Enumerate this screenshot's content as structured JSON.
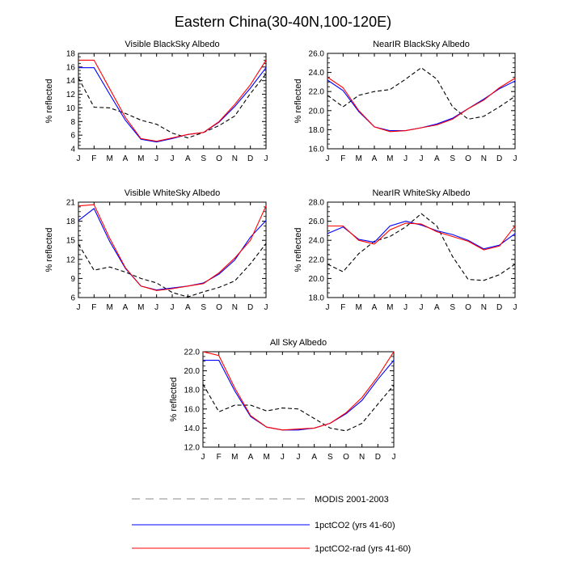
{
  "figure": {
    "title": "Eastern China(30-40N,100-120E)"
  },
  "months": [
    "J",
    "F",
    "M",
    "A",
    "M",
    "J",
    "J",
    "A",
    "S",
    "O",
    "N",
    "D",
    "J"
  ],
  "series_styles": [
    {
      "name": "MODIS 2001-2003",
      "color": "#000000",
      "dash": "dashed"
    },
    {
      "name": "1pctCO2 (yrs 41-60)",
      "color": "#0000ff",
      "dash": "solid"
    },
    {
      "name": "1pctCO2-rad (yrs 41-60)",
      "color": "#ff0000",
      "dash": "solid"
    }
  ],
  "legend": {
    "entries": [
      {
        "label": "MODIS 2001-2003"
      },
      {
        "label": "1pctCO2 (yrs 41-60)"
      },
      {
        "label": "1pctCO2-rad (yrs 41-60)"
      }
    ]
  },
  "chart_data": [
    {
      "type": "line",
      "title": "Visible BlackSky Albedo",
      "xlabel": "",
      "ylabel": "% reflected",
      "categories": [
        "J",
        "F",
        "M",
        "A",
        "M",
        "J",
        "J",
        "A",
        "S",
        "O",
        "N",
        "D",
        "J"
      ],
      "ylim": [
        4,
        18
      ],
      "yticks": [
        "4",
        "6",
        "8",
        "10",
        "12",
        "14",
        "16",
        "18"
      ],
      "series": [
        {
          "name": "MODIS 2001-2003",
          "values": [
            14.4,
            10.1,
            10.0,
            9.2,
            8.2,
            7.6,
            6.3,
            5.6,
            6.4,
            7.4,
            8.8,
            12.1,
            15.0
          ]
        },
        {
          "name": "1pctCO2 (yrs 41-60)",
          "values": [
            15.9,
            15.9,
            12.0,
            8.2,
            5.4,
            5.0,
            5.5,
            6.1,
            6.4,
            7.9,
            10.2,
            12.9,
            15.9
          ]
        },
        {
          "name": "1pctCO2-rad (yrs 41-60)",
          "values": [
            17.0,
            17.0,
            12.8,
            8.6,
            5.5,
            5.1,
            5.6,
            6.1,
            6.4,
            8.0,
            10.5,
            13.4,
            17.0
          ]
        }
      ]
    },
    {
      "type": "line",
      "title": "NearIR BlackSky Albedo",
      "xlabel": "",
      "ylabel": "% reflected",
      "categories": [
        "J",
        "F",
        "M",
        "A",
        "M",
        "J",
        "J",
        "A",
        "S",
        "O",
        "N",
        "D",
        "J"
      ],
      "ylim": [
        16,
        26
      ],
      "yticks": [
        "16.0",
        "18.0",
        "20.0",
        "22.0",
        "24.0",
        "26.0"
      ],
      "series": [
        {
          "name": "MODIS 2001-2003",
          "values": [
            21.6,
            20.4,
            21.6,
            22.0,
            22.2,
            23.3,
            24.5,
            23.3,
            20.4,
            19.1,
            19.4,
            20.4,
            21.5
          ]
        },
        {
          "name": "1pctCO2 (yrs 41-60)",
          "values": [
            23.2,
            22.1,
            19.9,
            18.3,
            17.9,
            17.9,
            18.2,
            18.6,
            19.2,
            20.2,
            21.2,
            22.3,
            23.1
          ]
        },
        {
          "name": "1pctCO2-rad (yrs 41-60)",
          "values": [
            23.5,
            22.4,
            20.0,
            18.3,
            17.8,
            17.9,
            18.2,
            18.5,
            19.1,
            20.2,
            21.1,
            22.4,
            23.4
          ]
        }
      ]
    },
    {
      "type": "line",
      "title": "Visible WhiteSky Albedo",
      "xlabel": "",
      "ylabel": "% reflected",
      "categories": [
        "J",
        "F",
        "M",
        "A",
        "M",
        "J",
        "J",
        "A",
        "S",
        "O",
        "N",
        "D",
        "J"
      ],
      "ylim": [
        6,
        21
      ],
      "yticks": [
        "6",
        "9",
        "12",
        "15",
        "18",
        "21"
      ],
      "series": [
        {
          "name": "MODIS 2001-2003",
          "values": [
            14.4,
            10.3,
            10.8,
            10.0,
            9.0,
            8.3,
            6.8,
            6.1,
            6.9,
            7.6,
            8.6,
            11.3,
            14.5
          ]
        },
        {
          "name": "1pctCO2 (yrs 41-60)",
          "values": [
            18.1,
            20.0,
            14.8,
            10.6,
            7.8,
            7.2,
            7.5,
            7.8,
            8.3,
            9.7,
            11.9,
            15.5,
            18.1
          ]
        },
        {
          "name": "1pctCO2-rad (yrs 41-60)",
          "values": [
            20.4,
            20.6,
            15.3,
            10.7,
            7.8,
            7.1,
            7.4,
            7.8,
            8.2,
            9.9,
            12.2,
            15.0,
            20.4
          ]
        }
      ]
    },
    {
      "type": "line",
      "title": "NearIR WhiteSky Albedo",
      "xlabel": "",
      "ylabel": "% reflected",
      "categories": [
        "J",
        "F",
        "M",
        "A",
        "M",
        "J",
        "J",
        "A",
        "S",
        "O",
        "N",
        "D",
        "J"
      ],
      "ylim": [
        18,
        28
      ],
      "yticks": [
        "18.0",
        "20.0",
        "22.0",
        "24.0",
        "26.0",
        "28.0"
      ],
      "series": [
        {
          "name": "MODIS 2001-2003",
          "values": [
            21.5,
            20.7,
            22.6,
            23.9,
            24.4,
            25.4,
            26.8,
            25.5,
            22.3,
            19.9,
            19.8,
            20.4,
            21.5
          ]
        },
        {
          "name": "1pctCO2 (yrs 41-60)",
          "values": [
            24.7,
            25.4,
            24.1,
            23.8,
            25.5,
            26.0,
            25.6,
            25.0,
            24.6,
            24.0,
            23.1,
            23.5,
            24.7
          ]
        },
        {
          "name": "1pctCO2-rad (yrs 41-60)",
          "values": [
            25.5,
            25.5,
            24.0,
            23.6,
            25.1,
            25.8,
            25.7,
            24.9,
            24.4,
            23.9,
            23.0,
            23.4,
            25.5
          ]
        }
      ]
    },
    {
      "type": "line",
      "title": "All Sky Albedo",
      "xlabel": "",
      "ylabel": "% reflected",
      "categories": [
        "J",
        "F",
        "M",
        "A",
        "M",
        "J",
        "J",
        "A",
        "S",
        "O",
        "N",
        "D",
        "J"
      ],
      "ylim": [
        12,
        22
      ],
      "yticks": [
        "12.0",
        "14.0",
        "16.0",
        "18.0",
        "20.0",
        "22.0"
      ],
      "series": [
        {
          "name": "MODIS 2001-2003",
          "values": [
            18.6,
            15.7,
            16.4,
            16.4,
            15.8,
            16.1,
            16.0,
            15.0,
            14.0,
            13.7,
            14.5,
            16.5,
            18.5
          ]
        },
        {
          "name": "1pctCO2 (yrs 41-60)",
          "values": [
            21.1,
            21.1,
            17.9,
            15.2,
            14.1,
            13.8,
            13.8,
            14.0,
            14.5,
            15.5,
            16.9,
            19.1,
            21.1
          ]
        },
        {
          "name": "1pctCO2-rad (yrs 41-60)",
          "values": [
            22.0,
            21.6,
            18.2,
            15.3,
            14.1,
            13.8,
            13.9,
            14.0,
            14.5,
            15.6,
            17.2,
            19.4,
            22.0
          ]
        }
      ]
    }
  ]
}
